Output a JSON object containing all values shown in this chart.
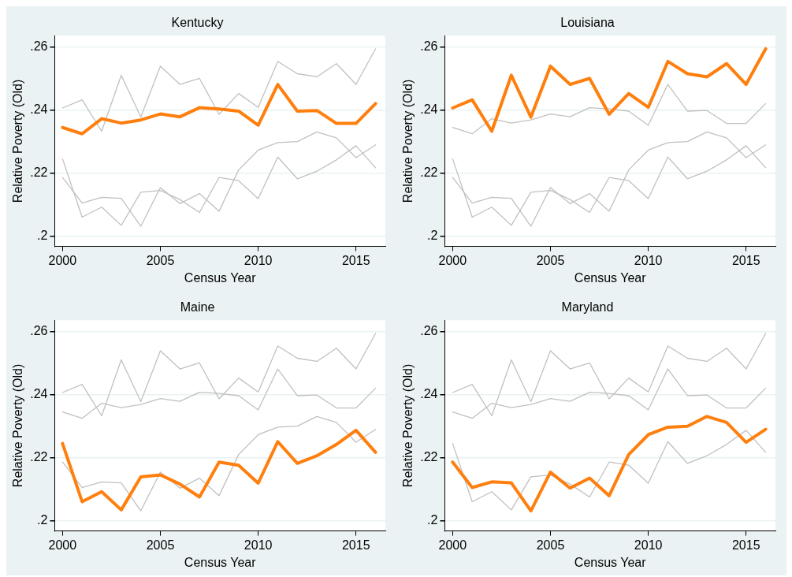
{
  "chart_data": [
    {
      "type": "line",
      "title": "Kentucky",
      "xlabel": "Census Year",
      "ylabel": "Relative Poverty (Old)",
      "x": [
        2000,
        2001,
        2002,
        2003,
        2004,
        2005,
        2006,
        2007,
        2008,
        2009,
        2010,
        2011,
        2012,
        2013,
        2014,
        2015,
        2016
      ],
      "xlim": [
        1999.6,
        2016.5
      ],
      "xticks": [
        2000,
        2005,
        2010,
        2015
      ],
      "ylim": [
        0.1967,
        0.2637
      ],
      "yticks": [
        {
          "value": 0.2,
          "label": ".2"
        },
        {
          "value": 0.22,
          "label": ".22"
        },
        {
          "value": 0.24,
          "label": ".24"
        },
        {
          "value": 0.26,
          "label": ".26"
        }
      ],
      "grid": "y",
      "series": [
        {
          "color": "#c0c0c0",
          "values": [
            0.2407,
            0.2433,
            0.2333,
            0.2511,
            0.2378,
            0.254,
            0.2482,
            0.2501,
            0.2387,
            0.2453,
            0.2409,
            0.2555,
            0.2516,
            0.2506,
            0.2548,
            0.2482,
            0.2595
          ]
        },
        {
          "color": "#c0c0c0",
          "values": [
            0.2245,
            0.206,
            0.2092,
            0.2034,
            0.2139,
            0.2145,
            0.2116,
            0.2075,
            0.2186,
            0.2176,
            0.2119,
            0.2251,
            0.2182,
            0.2206,
            0.2242,
            0.2287,
            0.2217
          ]
        },
        {
          "color": "#c0c0c0",
          "values": [
            0.2186,
            0.2105,
            0.2123,
            0.212,
            0.2031,
            0.2154,
            0.2103,
            0.2135,
            0.2079,
            0.221,
            0.2273,
            0.2297,
            0.23,
            0.2331,
            0.2312,
            0.2249,
            0.229
          ]
        },
        {
          "color": "#ff7f0e",
          "values": [
            0.2345,
            0.2325,
            0.2373,
            0.2359,
            0.2369,
            0.2388,
            0.2379,
            0.2408,
            0.2404,
            0.2397,
            0.2352,
            0.2482,
            0.2397,
            0.2399,
            0.2358,
            0.2358,
            0.2421
          ]
        }
      ]
    },
    {
      "type": "line",
      "title": "Louisiana",
      "xlabel": "Census Year",
      "ylabel": "Relative Poverty (Old)",
      "x": [
        2000,
        2001,
        2002,
        2003,
        2004,
        2005,
        2006,
        2007,
        2008,
        2009,
        2010,
        2011,
        2012,
        2013,
        2014,
        2015,
        2016
      ],
      "xlim": [
        1999.6,
        2016.5
      ],
      "xticks": [
        2000,
        2005,
        2010,
        2015
      ],
      "ylim": [
        0.1967,
        0.2637
      ],
      "yticks": [
        {
          "value": 0.2,
          "label": ".2"
        },
        {
          "value": 0.22,
          "label": ".22"
        },
        {
          "value": 0.24,
          "label": ".24"
        },
        {
          "value": 0.26,
          "label": ".26"
        }
      ],
      "grid": "y",
      "series": [
        {
          "color": "#c0c0c0",
          "values": [
            0.2345,
            0.2325,
            0.2373,
            0.2359,
            0.2369,
            0.2388,
            0.2379,
            0.2408,
            0.2404,
            0.2397,
            0.2352,
            0.2482,
            0.2397,
            0.2399,
            0.2358,
            0.2358,
            0.2421
          ]
        },
        {
          "color": "#c0c0c0",
          "values": [
            0.2245,
            0.206,
            0.2092,
            0.2034,
            0.2139,
            0.2145,
            0.2116,
            0.2075,
            0.2186,
            0.2176,
            0.2119,
            0.2251,
            0.2182,
            0.2206,
            0.2242,
            0.2287,
            0.2217
          ]
        },
        {
          "color": "#c0c0c0",
          "values": [
            0.2186,
            0.2105,
            0.2123,
            0.212,
            0.2031,
            0.2154,
            0.2103,
            0.2135,
            0.2079,
            0.221,
            0.2273,
            0.2297,
            0.23,
            0.2331,
            0.2312,
            0.2249,
            0.229
          ]
        },
        {
          "color": "#ff7f0e",
          "values": [
            0.2407,
            0.2433,
            0.2333,
            0.2511,
            0.2378,
            0.254,
            0.2482,
            0.2501,
            0.2387,
            0.2453,
            0.2409,
            0.2555,
            0.2516,
            0.2506,
            0.2548,
            0.2482,
            0.2595
          ]
        }
      ]
    },
    {
      "type": "line",
      "title": "Maine",
      "xlabel": "Census Year",
      "ylabel": "Relative Poverty (Old)",
      "x": [
        2000,
        2001,
        2002,
        2003,
        2004,
        2005,
        2006,
        2007,
        2008,
        2009,
        2010,
        2011,
        2012,
        2013,
        2014,
        2015,
        2016
      ],
      "xlim": [
        1999.6,
        2016.5
      ],
      "xticks": [
        2000,
        2005,
        2010,
        2015
      ],
      "ylim": [
        0.1967,
        0.2637
      ],
      "yticks": [
        {
          "value": 0.2,
          "label": ".2"
        },
        {
          "value": 0.22,
          "label": ".22"
        },
        {
          "value": 0.24,
          "label": ".24"
        },
        {
          "value": 0.26,
          "label": ".26"
        }
      ],
      "grid": "y",
      "series": [
        {
          "color": "#c0c0c0",
          "values": [
            0.2345,
            0.2325,
            0.2373,
            0.2359,
            0.2369,
            0.2388,
            0.2379,
            0.2408,
            0.2404,
            0.2397,
            0.2352,
            0.2482,
            0.2397,
            0.2399,
            0.2358,
            0.2358,
            0.2421
          ]
        },
        {
          "color": "#c0c0c0",
          "values": [
            0.2407,
            0.2433,
            0.2333,
            0.2511,
            0.2378,
            0.254,
            0.2482,
            0.2501,
            0.2387,
            0.2453,
            0.2409,
            0.2555,
            0.2516,
            0.2506,
            0.2548,
            0.2482,
            0.2595
          ]
        },
        {
          "color": "#c0c0c0",
          "values": [
            0.2186,
            0.2105,
            0.2123,
            0.212,
            0.2031,
            0.2154,
            0.2103,
            0.2135,
            0.2079,
            0.221,
            0.2273,
            0.2297,
            0.23,
            0.2331,
            0.2312,
            0.2249,
            0.229
          ]
        },
        {
          "color": "#ff7f0e",
          "values": [
            0.2245,
            0.206,
            0.2092,
            0.2034,
            0.2139,
            0.2145,
            0.2116,
            0.2075,
            0.2186,
            0.2176,
            0.2119,
            0.2251,
            0.2182,
            0.2206,
            0.2242,
            0.2287,
            0.2217
          ]
        }
      ]
    },
    {
      "type": "line",
      "title": "Maryland",
      "xlabel": "Census Year",
      "ylabel": "Relative Poverty (Old)",
      "x": [
        2000,
        2001,
        2002,
        2003,
        2004,
        2005,
        2006,
        2007,
        2008,
        2009,
        2010,
        2011,
        2012,
        2013,
        2014,
        2015,
        2016
      ],
      "xlim": [
        1999.6,
        2016.5
      ],
      "xticks": [
        2000,
        2005,
        2010,
        2015
      ],
      "ylim": [
        0.1967,
        0.2637
      ],
      "yticks": [
        {
          "value": 0.2,
          "label": ".2"
        },
        {
          "value": 0.22,
          "label": ".22"
        },
        {
          "value": 0.24,
          "label": ".24"
        },
        {
          "value": 0.26,
          "label": ".26"
        }
      ],
      "grid": "y",
      "series": [
        {
          "color": "#c0c0c0",
          "values": [
            0.2345,
            0.2325,
            0.2373,
            0.2359,
            0.2369,
            0.2388,
            0.2379,
            0.2408,
            0.2404,
            0.2397,
            0.2352,
            0.2482,
            0.2397,
            0.2399,
            0.2358,
            0.2358,
            0.2421
          ]
        },
        {
          "color": "#c0c0c0",
          "values": [
            0.2407,
            0.2433,
            0.2333,
            0.2511,
            0.2378,
            0.254,
            0.2482,
            0.2501,
            0.2387,
            0.2453,
            0.2409,
            0.2555,
            0.2516,
            0.2506,
            0.2548,
            0.2482,
            0.2595
          ]
        },
        {
          "color": "#c0c0c0",
          "values": [
            0.2245,
            0.206,
            0.2092,
            0.2034,
            0.2139,
            0.2145,
            0.2116,
            0.2075,
            0.2186,
            0.2176,
            0.2119,
            0.2251,
            0.2182,
            0.2206,
            0.2242,
            0.2287,
            0.2217
          ]
        },
        {
          "color": "#ff7f0e",
          "values": [
            0.2186,
            0.2105,
            0.2123,
            0.212,
            0.2031,
            0.2154,
            0.2103,
            0.2135,
            0.2079,
            0.221,
            0.2273,
            0.2297,
            0.23,
            0.2331,
            0.2312,
            0.2249,
            0.229
          ]
        }
      ]
    }
  ]
}
